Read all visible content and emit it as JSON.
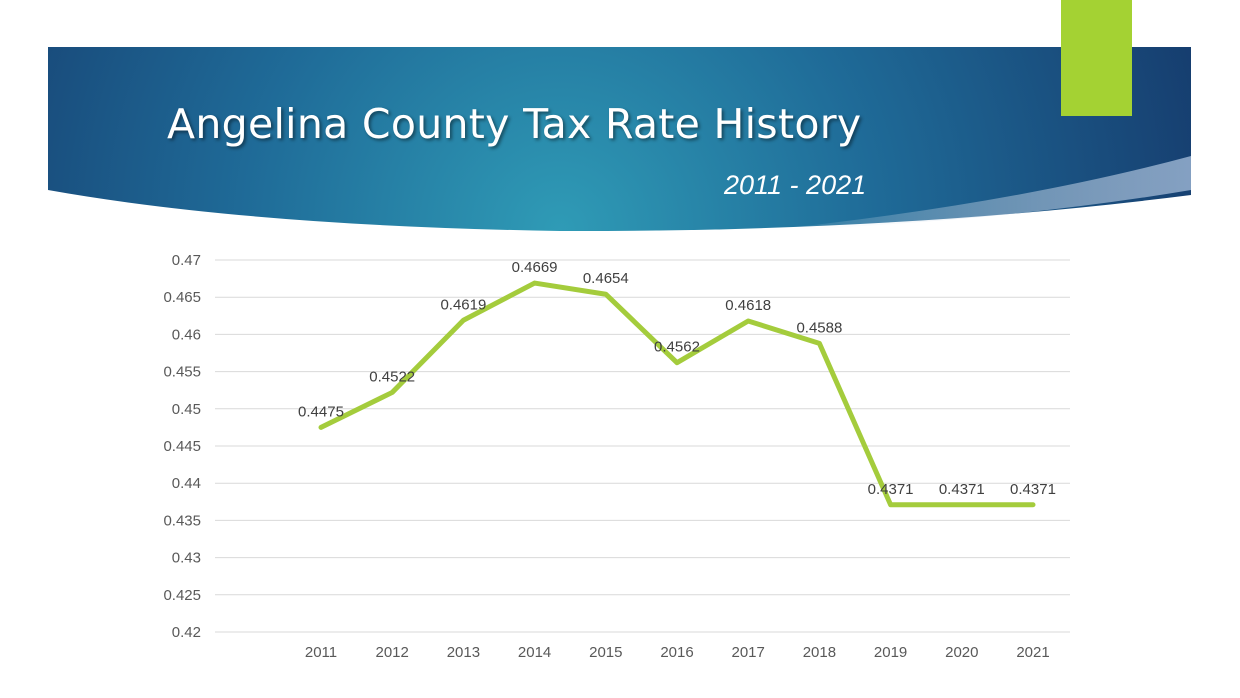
{
  "slide": {
    "title": "Angelina County Tax Rate History",
    "subtitle": "2011 - 2021",
    "colors": {
      "banner_dark": "#15386a",
      "banner_light": "#2b8fae",
      "accent_green": "#a4d233",
      "line": "#a4cc3c",
      "gridline": "#d9d9d9",
      "tick_text": "#595959",
      "label_text": "#404040"
    }
  },
  "chart_data": {
    "type": "line",
    "categories": [
      "2011",
      "2012",
      "2013",
      "2014",
      "2015",
      "2016",
      "2017",
      "2018",
      "2019",
      "2020",
      "2021"
    ],
    "series": [
      {
        "values": [
          0.4475,
          0.4522,
          0.4619,
          0.4669,
          0.4654,
          0.4562,
          0.4618,
          0.4588,
          0.4371,
          0.4371,
          0.4371
        ],
        "data_labels": [
          "0.4475",
          "0.4522",
          "0.4619",
          "0.4669",
          "0.4654",
          "0.4562",
          "0.4618",
          "0.4588",
          "0.4371",
          "0.4371",
          "0.4371"
        ]
      }
    ],
    "ylim": [
      0.42,
      0.47
    ],
    "y_ticks": [
      "0.47",
      "0.465",
      "0.46",
      "0.455",
      "0.45",
      "0.445",
      "0.44",
      "0.435",
      "0.43",
      "0.425",
      "0.42"
    ],
    "grid": true,
    "legend": "none"
  }
}
